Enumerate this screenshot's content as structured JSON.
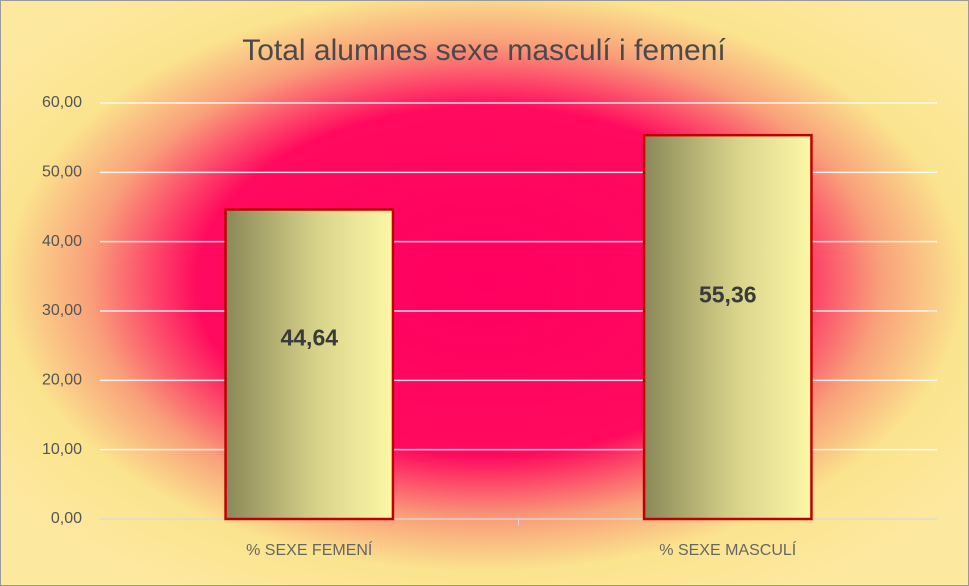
{
  "chart_data": {
    "type": "bar",
    "title": "Total alumnes sexe masculí i femení",
    "categories": [
      "%  SEXE FEMENÍ",
      "%  SEXE MASCULÍ"
    ],
    "values": [
      44.64,
      55.36
    ],
    "value_labels": [
      "44,64",
      "55,36"
    ],
    "color": "#c00000",
    "ylim": [
      0,
      60
    ],
    "yticks": [
      {
        "value": 0,
        "label": "0,00"
      },
      {
        "value": 10,
        "label": "10,00"
      },
      {
        "value": 20,
        "label": "20,00"
      },
      {
        "value": 30,
        "label": "30,00"
      },
      {
        "value": 40,
        "label": "40,00"
      },
      {
        "value": 50,
        "label": "50,00"
      },
      {
        "value": 60,
        "label": "60,00"
      }
    ],
    "grid": true
  }
}
